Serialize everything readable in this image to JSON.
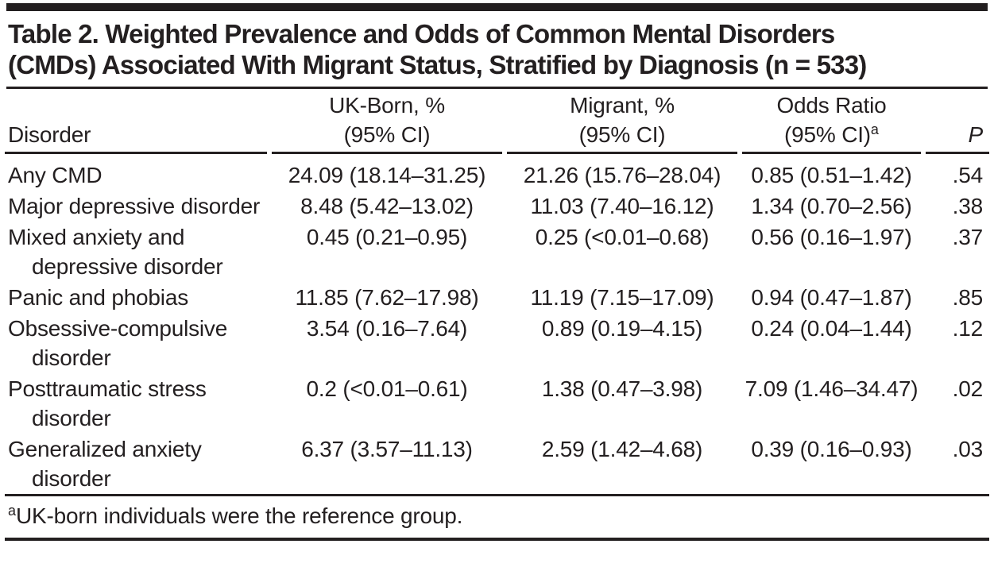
{
  "page": {
    "title_line1": "Table 2. Weighted Prevalence and Odds of Common Mental Disorders",
    "title_line2": "(CMDs) Associated With Migrant Status, Stratified by Diagnosis (n = 533)"
  },
  "table": {
    "columns": [
      {
        "label": "Disorder"
      },
      {
        "label": "UK-Born, %",
        "sub": "(95% CI)"
      },
      {
        "label": "Migrant, %",
        "sub": "(95% CI)"
      },
      {
        "label": "Odds Ratio",
        "sub": "(95% CI)",
        "sup": "a"
      },
      {
        "label": "P"
      }
    ],
    "rows": [
      {
        "disorder": "Any CMD",
        "uk_born": "24.09 (18.14–31.25)",
        "migrant": "21.26 (15.76–28.04)",
        "odds_ratio": "0.85 (0.51–1.42)",
        "p": ".54"
      },
      {
        "disorder": "Major depressive disorder",
        "uk_born": "8.48 (5.42–13.02)",
        "migrant": "11.03 (7.40–16.12)",
        "odds_ratio": "1.34 (0.70–2.56)",
        "p": ".38"
      },
      {
        "disorder": "Mixed anxiety and depressive disorder",
        "uk_born": "0.45 (0.21–0.95)",
        "migrant": "0.25 (<0.01–0.68)",
        "odds_ratio": "0.56 (0.16–1.97)",
        "p": ".37"
      },
      {
        "disorder": "Panic and phobias",
        "uk_born": "11.85 (7.62–17.98)",
        "migrant": "11.19 (7.15–17.09)",
        "odds_ratio": "0.94 (0.47–1.87)",
        "p": ".85"
      },
      {
        "disorder": "Obsessive-compulsive disorder",
        "uk_born": "3.54 (0.16–7.64)",
        "migrant": "0.89 (0.19–4.15)",
        "odds_ratio": "0.24 (0.04–1.44)",
        "p": ".12"
      },
      {
        "disorder": "Posttraumatic stress disorder",
        "uk_born": "0.2 (<0.01–0.61)",
        "migrant": "1.38 (0.47–3.98)",
        "odds_ratio": "7.09 (1.46–34.47)",
        "p": ".02"
      },
      {
        "disorder": "Generalized anxiety disorder",
        "uk_born": "6.37 (3.57–11.13)",
        "migrant": "2.59 (1.42–4.68)",
        "odds_ratio": "0.39 (0.16–0.93)",
        "p": ".03"
      }
    ],
    "footnote_marker": "a",
    "footnote_text": "UK-born individuals were the reference group."
  },
  "colors": {
    "ink": "#231f20",
    "background": "#ffffff"
  }
}
